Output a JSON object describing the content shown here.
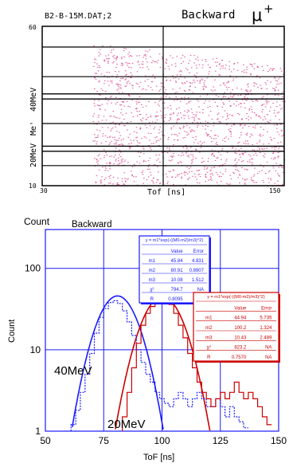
{
  "chart_data": [
    {
      "type": "scatter",
      "header": "B2-B-15M.DAT;2",
      "title": "Backward",
      "title_symbol": "μ",
      "title_sup": "+",
      "xlabel": "Tof [ns]",
      "ylabel": "Me'",
      "xlim": [
        30,
        150
      ],
      "ylim": [
        10,
        60
      ],
      "x_tick_labels": [
        "30",
        "150"
      ],
      "y_tick_labels": [
        "60",
        "10"
      ],
      "band_labels": [
        "40MeV",
        "20MeV"
      ],
      "bands": [
        {
          "name": "40MeV",
          "y_low": 37.2,
          "y_high": 38.8
        },
        {
          "name": "20MeV",
          "y_low": 20.8,
          "y_high": 22.4
        }
      ],
      "h_lines": [
        53.5,
        44.2,
        29.5,
        16.3
      ],
      "v_line": 90,
      "scatter_region": {
        "x_range": [
          55,
          150
        ],
        "y_range": [
          10,
          55
        ],
        "color": "#e060a0"
      }
    },
    {
      "type": "line",
      "title": "Backward",
      "xlabel": "ToF [ns]",
      "ylabel": "Count",
      "y_corner_label": "Count",
      "xlim": [
        50,
        150
      ],
      "ylim": [
        1,
        300
      ],
      "yscale": "log",
      "x_ticks": [
        50,
        75,
        100,
        125,
        150
      ],
      "y_ticks": [
        1,
        10,
        100
      ],
      "x_tick_labels": [
        "50",
        "75",
        "100",
        "125",
        "150"
      ],
      "y_tick_labels": [
        "1",
        "10",
        "100"
      ],
      "grid_x": [
        75,
        100,
        125
      ],
      "grid_y": [
        10,
        100
      ],
      "series": [
        {
          "name": "40MeV",
          "color": "#1a1aff",
          "style": "dotted-step",
          "x": [
            62,
            64,
            66,
            68,
            70,
            72,
            74,
            76,
            78,
            80,
            82,
            84,
            86,
            88,
            90,
            92,
            94,
            96,
            98,
            100,
            102,
            104,
            106,
            108,
            110,
            112,
            114,
            116,
            118,
            120,
            122,
            124,
            126,
            128,
            130,
            132,
            134,
            136
          ],
          "y": [
            1.2,
            1.8,
            3,
            5,
            9,
            16,
            25,
            32,
            38,
            40,
            37,
            30,
            22,
            15,
            10,
            7,
            5,
            4,
            3,
            2.5,
            2.2,
            2,
            2.5,
            3,
            2.5,
            2,
            2.5,
            3,
            2.5,
            2,
            2,
            2.5,
            2,
            1.5,
            2,
            1.5,
            1.3,
            1.1
          ]
        },
        {
          "name": "20MeV",
          "color": "#cc0000",
          "style": "step",
          "x": [
            84,
            86,
            88,
            90,
            92,
            94,
            96,
            98,
            100,
            102,
            104,
            106,
            108,
            110,
            112,
            114,
            116,
            118,
            120,
            122,
            124,
            126,
            128,
            130,
            132,
            134,
            136,
            138,
            140,
            142,
            144,
            146
          ],
          "y": [
            1.5,
            3,
            6,
            12,
            20,
            28,
            34,
            40,
            45,
            42,
            36,
            28,
            20,
            14,
            9,
            6,
            4,
            3,
            2.5,
            2,
            2.5,
            3,
            2.5,
            3,
            4,
            3,
            2.5,
            3,
            2.5,
            2,
            1.5,
            1.2
          ]
        }
      ],
      "fits": [
        {
          "name": "40MeV fit",
          "color": "#1a1aff",
          "amplitude": 45.84,
          "mean": 80.91,
          "sigma": 10.08
        },
        {
          "name": "20MeV fit",
          "color": "#cc0000",
          "amplitude": 44.94,
          "mean": 100.2,
          "sigma": 10.43
        }
      ],
      "annotations": [
        "40MeV",
        "20MeV"
      ],
      "stat_boxes": [
        {
          "color": "#1a1aff",
          "formula": "y = m1*exp(-((M0-m2)/m3)^2)",
          "headers": [
            "",
            "Value",
            "Error"
          ],
          "rows": [
            [
              "m1",
              "45.84",
              "4.831"
            ],
            [
              "m2",
              "80.91",
              "0.8907"
            ],
            [
              "m3",
              "10.08",
              "1.512"
            ],
            [
              "χ²",
              "794.7",
              "NA"
            ],
            [
              "R",
              "0.8095",
              "NA"
            ]
          ]
        },
        {
          "color": "#cc0000",
          "formula": "y = m1*exp(-((M0-m2)/m3)^2)",
          "headers": [
            "",
            "Value",
            "Error"
          ],
          "rows": [
            [
              "m1",
              "44.94",
              "5.735"
            ],
            [
              "m2",
              "100.2",
              "1.324"
            ],
            [
              "m3",
              "10.43",
              "2.489"
            ],
            [
              "χ²",
              "823.2",
              "NA"
            ],
            [
              "R",
              "0.7570",
              "NA"
            ]
          ]
        }
      ]
    }
  ]
}
